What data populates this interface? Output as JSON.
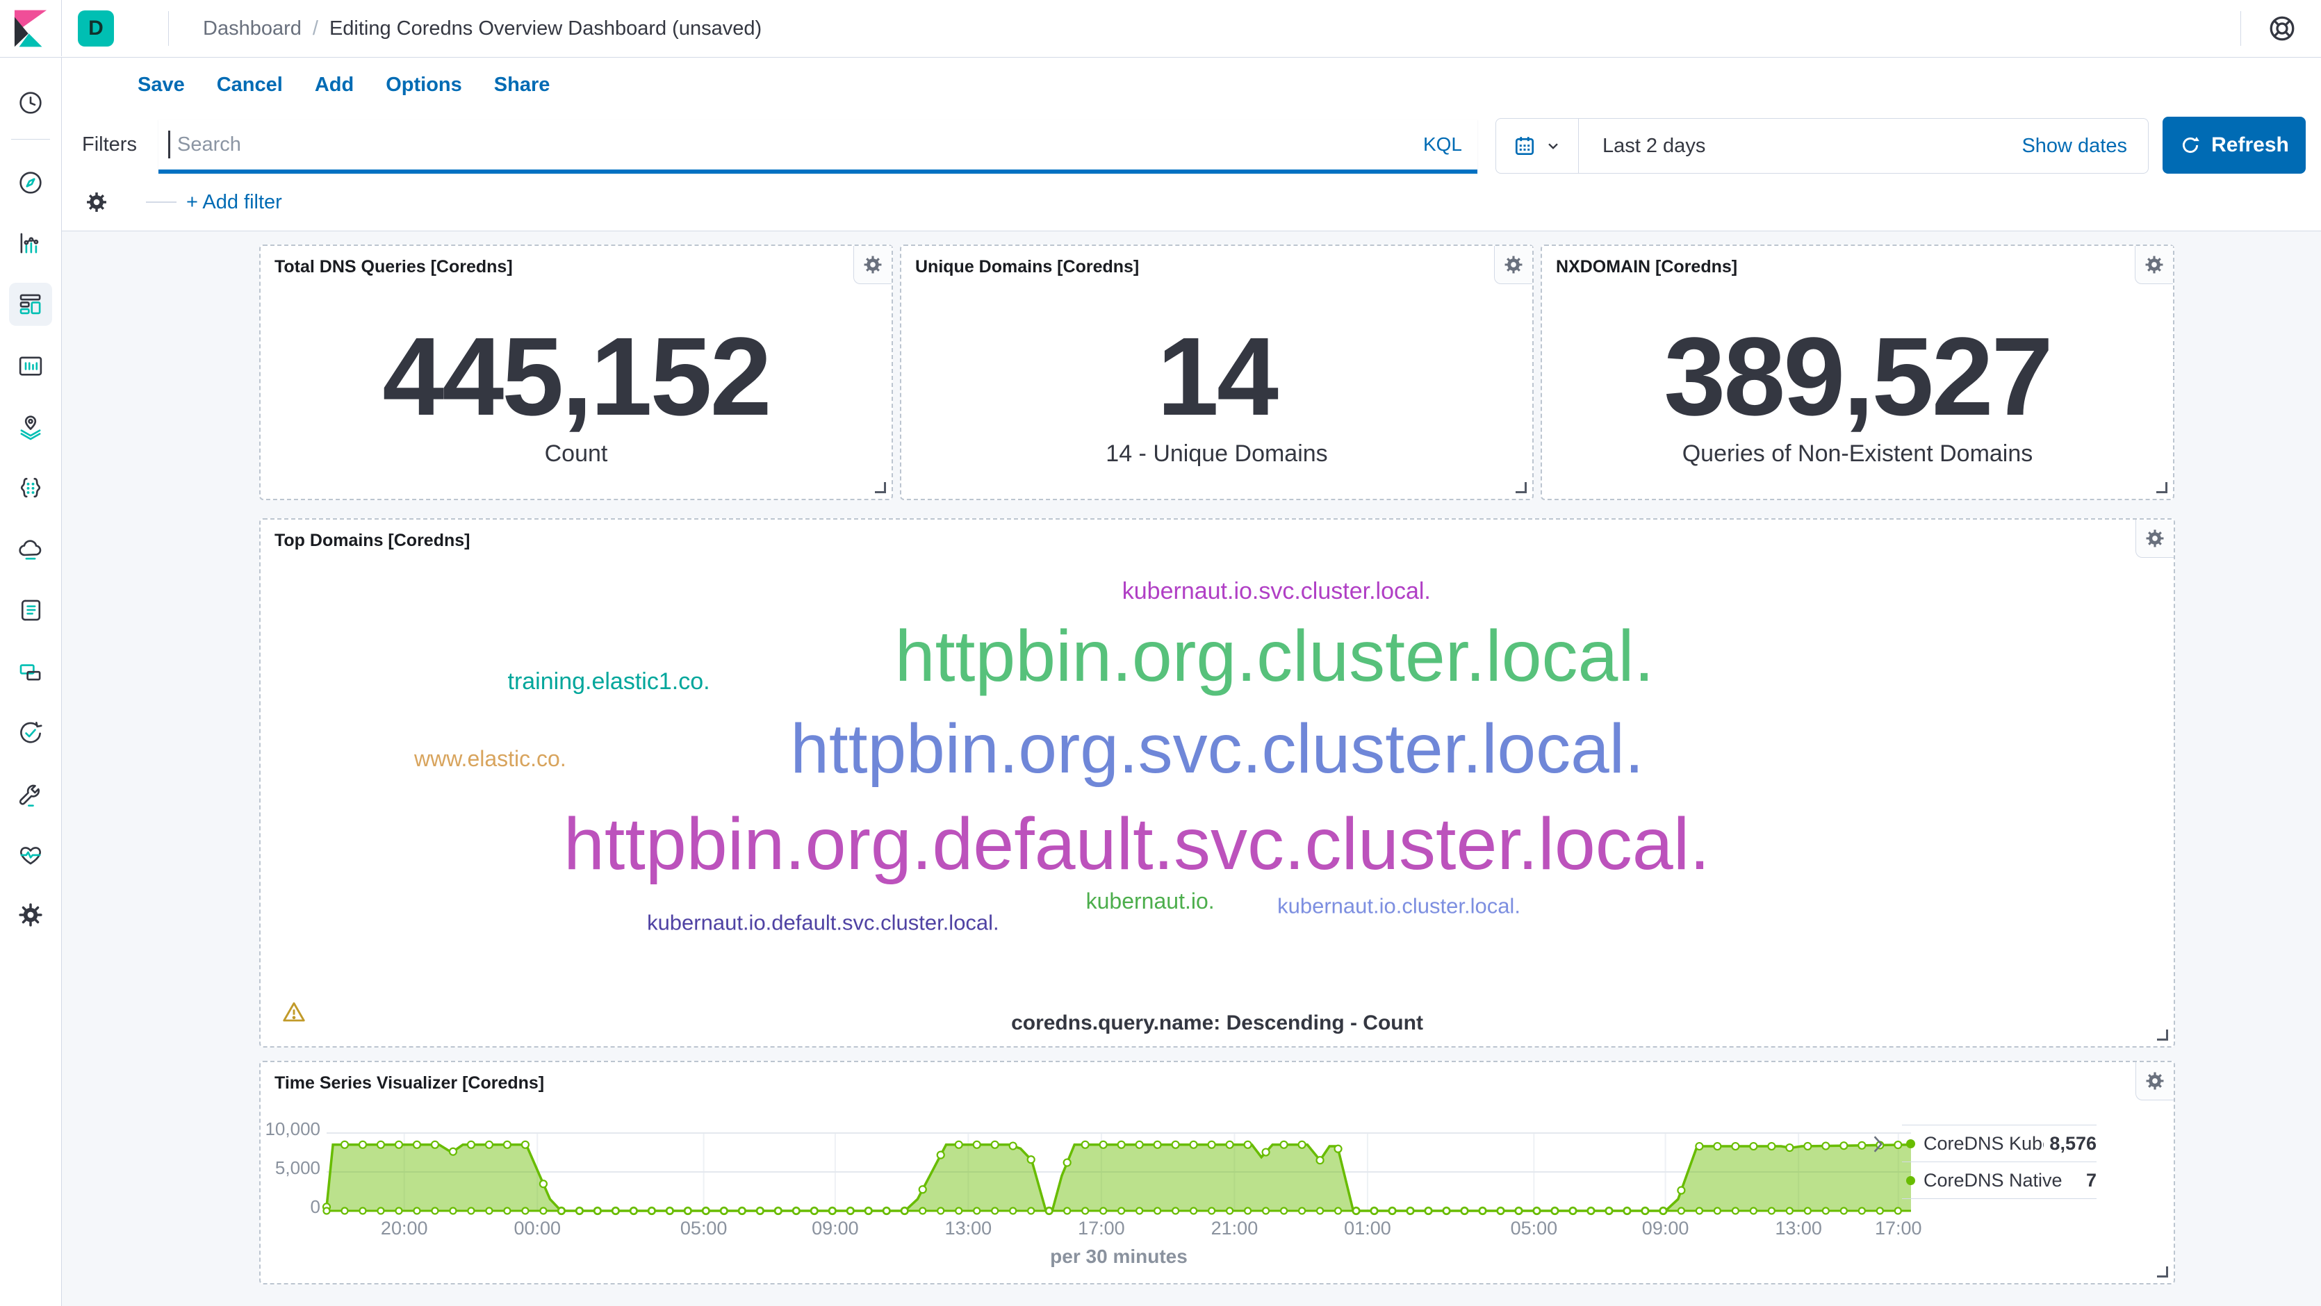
{
  "app": {
    "space_initial": "D",
    "breadcrumb_root": "Dashboard",
    "breadcrumb_separator": "/",
    "breadcrumb_current": "Editing Coredns Overview Dashboard (unsaved)"
  },
  "topnav": {
    "links": [
      "Save",
      "Cancel",
      "Add",
      "Options",
      "Share"
    ]
  },
  "query_bar": {
    "filters_label": "Filters",
    "search_placeholder": "Search",
    "kql_label": "KQL",
    "time_range": "Last 2 days",
    "show_dates_label": "Show dates",
    "refresh_label": "Refresh",
    "add_filter_label": "+ Add filter"
  },
  "sidebar": {
    "items": [
      {
        "icon": "recently-viewed-icon",
        "selected": false
      },
      {
        "icon": "discover-icon",
        "selected": false
      },
      {
        "icon": "visualize-icon",
        "selected": false
      },
      {
        "icon": "dashboard-icon",
        "selected": true
      },
      {
        "icon": "canvas-icon",
        "selected": false
      },
      {
        "icon": "maps-icon",
        "selected": false
      },
      {
        "icon": "machine-learning-icon",
        "selected": false
      },
      {
        "icon": "metrics-icon",
        "selected": false
      },
      {
        "icon": "logs-icon",
        "selected": false
      },
      {
        "icon": "apm-icon",
        "selected": false
      },
      {
        "icon": "uptime-icon",
        "selected": false
      },
      {
        "icon": "dev-tools-icon",
        "selected": false
      },
      {
        "icon": "monitoring-icon",
        "selected": false
      },
      {
        "icon": "management-icon",
        "selected": false
      }
    ]
  },
  "panels": {
    "total_dns": {
      "title": "Total DNS Queries [Coredns]",
      "value": "445,152",
      "label": "Count"
    },
    "unique_domains": {
      "title": "Unique Domains [Coredns]",
      "value": "14",
      "label": "14 - Unique Domains"
    },
    "nxdomain": {
      "title": "NXDOMAIN [Coredns]",
      "value": "389,527",
      "label": "Queries of Non-Existent Domains"
    },
    "top_domains": {
      "title": "Top Domains [Coredns]",
      "caption": "coredns.query.name: Descending - Count",
      "tags": [
        {
          "text": "kubernaut.io.svc.cluster.local.",
          "color": "#b03fc5",
          "size": 34,
          "x": 53.1,
          "y": 13.6
        },
        {
          "text": "httpbin.org.cluster.local.",
          "color": "#57c17b",
          "size": 104,
          "x": 53.0,
          "y": 26.0
        },
        {
          "text": "training.elastic1.co.",
          "color": "#00a69b",
          "size": 34,
          "x": 18.2,
          "y": 30.7
        },
        {
          "text": "httpbin.org.svc.cluster.local.",
          "color": "#6f87d8",
          "size": 100,
          "x": 50.0,
          "y": 43.5
        },
        {
          "text": "www.elastic.co.",
          "color": "#d8a45d",
          "size": 32,
          "x": 12.0,
          "y": 45.4
        },
        {
          "text": "httpbin.org.default.svc.cluster.local.",
          "color": "#bc52bc",
          "size": 106,
          "x": 45.8,
          "y": 61.6
        },
        {
          "text": "kubernaut.io.",
          "color": "#4cae4c",
          "size": 32,
          "x": 46.5,
          "y": 72.4
        },
        {
          "text": "kubernaut.io.cluster.local.",
          "color": "#7d8fe0",
          "size": 31,
          "x": 59.5,
          "y": 73.4
        },
        {
          "text": "kubernaut.io.default.svc.cluster.local.",
          "color": "#4f42a3",
          "size": 31,
          "x": 29.4,
          "y": 76.5
        }
      ]
    },
    "time_series": {
      "title": "Time Series Visualizer [Coredns]",
      "legend": [
        {
          "label": "CoreDNS Kubern...",
          "value": "8,576",
          "color": "#68bc00"
        },
        {
          "label": "CoreDNS Native",
          "value": "7",
          "color": "#68bc00"
        }
      ]
    }
  },
  "chart_data": {
    "type": "area",
    "panel": "Time Series Visualizer [Coredns]",
    "xlabel": "per 30 minutes",
    "ylim": [
      0,
      10000
    ],
    "grid": true,
    "legend_position": "right",
    "yticks": [
      {
        "label": "10,000",
        "value": 10000
      },
      {
        "label": "5,000",
        "value": 5000
      },
      {
        "label": "0",
        "value": 0
      }
    ],
    "xticks": [
      {
        "label": "20:00",
        "x": 0.049
      },
      {
        "label": "00:00",
        "x": 0.133
      },
      {
        "label": "05:00",
        "x": 0.238
      },
      {
        "label": "09:00",
        "x": 0.321
      },
      {
        "label": "13:00",
        "x": 0.405
      },
      {
        "label": "17:00",
        "x": 0.489
      },
      {
        "label": "21:00",
        "x": 0.573
      },
      {
        "label": "01:00",
        "x": 0.657
      },
      {
        "label": "05:00",
        "x": 0.762
      },
      {
        "label": "09:00",
        "x": 0.845
      },
      {
        "label": "13:00",
        "x": 0.929
      },
      {
        "label": "17:00",
        "x": 0.992
      }
    ],
    "series": [
      {
        "name": "CoreDNS Kubern...",
        "color": "#68bc00",
        "fill_opacity": 0.45,
        "points": [
          [
            0,
            500
          ],
          [
            0.004,
            8500
          ],
          [
            0.071,
            8500
          ],
          [
            0.079,
            7500
          ],
          [
            0.086,
            8500
          ],
          [
            0.126,
            8500
          ],
          [
            0.141,
            1500
          ],
          [
            0.148,
            0
          ],
          [
            0.365,
            0
          ],
          [
            0.373,
            1500
          ],
          [
            0.391,
            8500
          ],
          [
            0.431,
            8500
          ],
          [
            0.438,
            8000
          ],
          [
            0.445,
            6500
          ],
          [
            0.454,
            0
          ],
          [
            0.458,
            0
          ],
          [
            0.464,
            4500
          ],
          [
            0.472,
            8500
          ],
          [
            0.584,
            8500
          ],
          [
            0.59,
            6900
          ],
          [
            0.597,
            8500
          ],
          [
            0.619,
            8500
          ],
          [
            0.627,
            6500
          ],
          [
            0.633,
            8300
          ],
          [
            0.638,
            8300
          ],
          [
            0.648,
            0
          ],
          [
            0.845,
            0
          ],
          [
            0.853,
            1500
          ],
          [
            0.865,
            8300
          ],
          [
            0.918,
            8300
          ],
          [
            0.924,
            8100
          ],
          [
            0.931,
            8300
          ],
          [
            1,
            8500
          ]
        ]
      },
      {
        "name": "CoreDNS Native",
        "color": "#68bc00",
        "points": [
          [
            0,
            0
          ],
          [
            1,
            0
          ]
        ]
      }
    ],
    "marker_step": 0.0114
  },
  "colors": {
    "accent": "#006bb4",
    "focus_underline": "#0071c2",
    "logo_teal": "#00bfb3",
    "logo_pink": "#f04e98",
    "series_green": "#68bc00",
    "warning": "#c19a29"
  }
}
